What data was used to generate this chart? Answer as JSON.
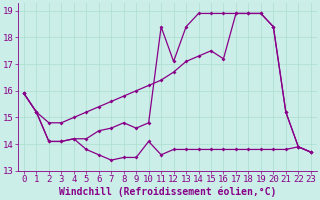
{
  "xlabel": "Windchill (Refroidissement éolien,°C)",
  "bg_color": "#cceee8",
  "line_color": "#880088",
  "xlim": [
    -0.5,
    23.5
  ],
  "ylim": [
    13.0,
    19.3
  ],
  "yticks": [
    13,
    14,
    15,
    16,
    17,
    18,
    19
  ],
  "xticks": [
    0,
    1,
    2,
    3,
    4,
    5,
    6,
    7,
    8,
    9,
    10,
    11,
    12,
    13,
    14,
    15,
    16,
    17,
    18,
    19,
    20,
    21,
    22,
    23
  ],
  "line1_y": [
    15.9,
    15.2,
    14.1,
    14.1,
    14.2,
    13.8,
    13.6,
    13.4,
    13.5,
    13.5,
    14.1,
    13.6,
    13.8,
    13.8,
    13.8,
    13.8,
    13.8,
    13.8,
    13.8,
    13.8,
    13.8,
    13.8,
    13.9,
    13.7
  ],
  "line2_y": [
    15.9,
    15.2,
    14.1,
    14.1,
    14.2,
    14.2,
    14.5,
    14.6,
    14.8,
    14.6,
    14.8,
    18.4,
    17.1,
    18.4,
    18.9,
    18.9,
    18.9,
    18.9,
    18.9,
    18.9,
    18.4,
    15.2,
    13.9,
    13.7
  ],
  "line3_y": [
    15.9,
    15.2,
    14.8,
    14.8,
    15.0,
    15.2,
    15.4,
    15.6,
    15.8,
    16.0,
    16.2,
    16.4,
    16.7,
    17.1,
    17.3,
    17.5,
    17.2,
    18.9,
    18.9,
    18.9,
    18.4,
    15.2,
    13.9,
    13.7
  ],
  "grid_color": "#aaddcc",
  "grid_linewidth": 0.5,
  "marker": "D",
  "markersize": 2.0,
  "linewidth": 0.9,
  "xlabel_fontsize": 7,
  "tick_fontsize": 6.5
}
